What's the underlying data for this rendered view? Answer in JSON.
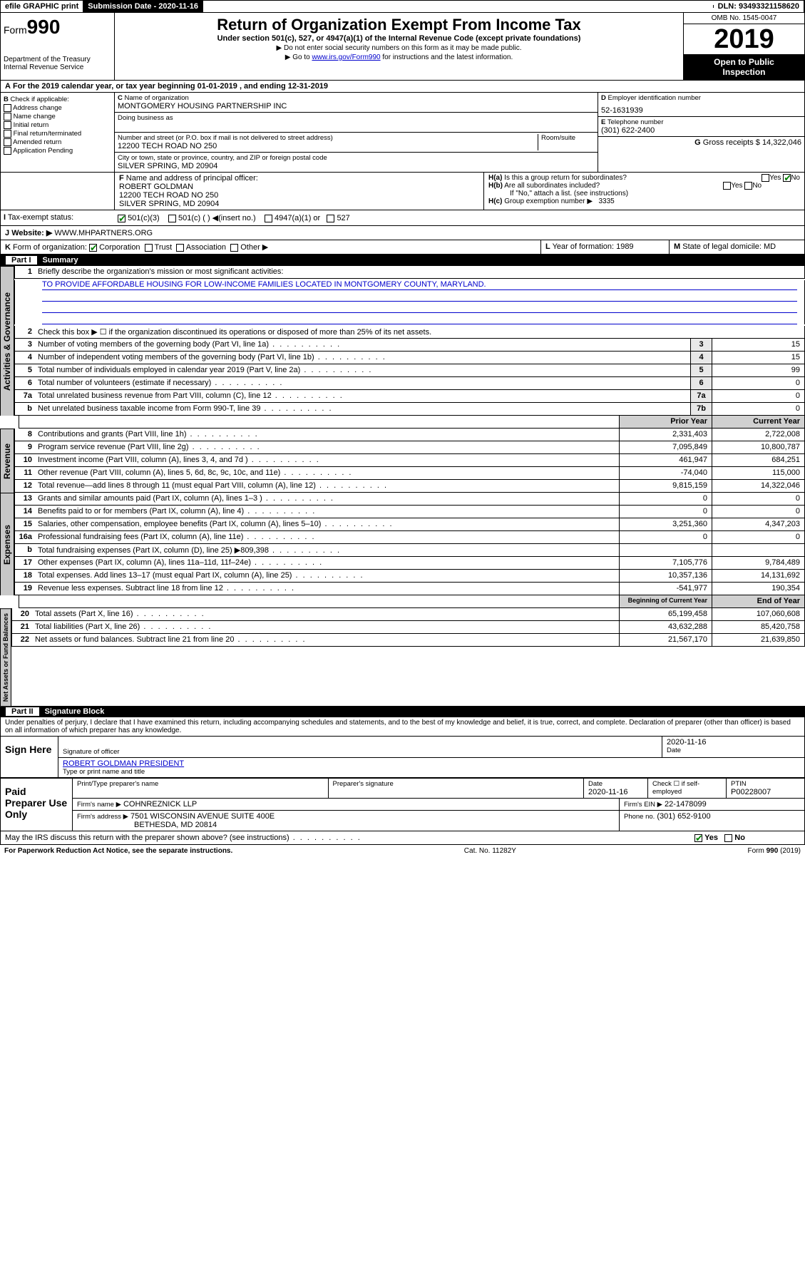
{
  "topbar": {
    "efile": "efile GRAPHIC print",
    "submission_label": "Submission Date - 2020-11-16",
    "dln": "DLN: 93493321158620"
  },
  "header": {
    "form_prefix": "Form",
    "form_number": "990",
    "dept": "Department of the Treasury\nInternal Revenue Service",
    "title": "Return of Organization Exempt From Income Tax",
    "subtitle": "Under section 501(c), 527, or 4947(a)(1) of the Internal Revenue Code (except private foundations)",
    "note1": "▶ Do not enter social security numbers on this form as it may be made public.",
    "note2_pre": "▶ Go to ",
    "note2_link": "www.irs.gov/Form990",
    "note2_post": " for instructions and the latest information.",
    "omb": "OMB No. 1545-0047",
    "year": "2019",
    "open": "Open to Public\nInspection"
  },
  "A": {
    "text": "For the 2019 calendar year, or tax year beginning 01-01-2019    , and ending 12-31-2019"
  },
  "B": {
    "label": "Check if applicable:",
    "opts": [
      "Address change",
      "Name change",
      "Initial return",
      "Final return/terminated",
      "Amended return",
      "Application Pending"
    ]
  },
  "C": {
    "name_label": "Name of organization",
    "name": "MONTGOMERY HOUSING PARTNERSHIP INC",
    "dba_label": "Doing business as",
    "street_label": "Number and street (or P.O. box if mail is not delivered to street address)",
    "room_label": "Room/suite",
    "street": "12200 TECH ROAD NO 250",
    "city_label": "City or town, state or province, country, and ZIP or foreign postal code",
    "city": "SILVER SPRING, MD  20904"
  },
  "D": {
    "label": "Employer identification number",
    "value": "52-1631939"
  },
  "E": {
    "label": "Telephone number",
    "value": "(301) 622-2400"
  },
  "G": {
    "label": "Gross receipts $",
    "value": "14,322,046"
  },
  "F": {
    "label": "Name and address of principal officer:",
    "name": "ROBERT GOLDMAN",
    "addr1": "12200 TECH ROAD NO 250",
    "addr2": "SILVER SPRING, MD  20904"
  },
  "H": {
    "a": "Is this a group return for subordinates?",
    "b": "Are all subordinates included?",
    "bnote": "If \"No,\" attach a list. (see instructions)",
    "c_label": "Group exemption number ▶",
    "c_val": "3335"
  },
  "I": {
    "label": "Tax-exempt status:",
    "opts": [
      "501(c)(3)",
      "501(c) (  ) ◀(insert no.)",
      "4947(a)(1) or",
      "527"
    ]
  },
  "J": {
    "label": "Website: ▶",
    "value": "WWW.MHPARTNERS.ORG"
  },
  "K": {
    "label": "Form of organization:",
    "opts": [
      "Corporation",
      "Trust",
      "Association",
      "Other ▶"
    ]
  },
  "L": {
    "label": "Year of formation:",
    "value": "1989"
  },
  "M": {
    "label": "State of legal domicile:",
    "value": "MD"
  },
  "part1": {
    "title": "Part I",
    "subtitle": "Summary",
    "q1": "Briefly describe the organization's mission or most significant activities:",
    "mission": "TO PROVIDE AFFORDABLE HOUSING FOR LOW-INCOME FAMILIES LOCATED IN MONTGOMERY COUNTY, MARYLAND.",
    "q2": "Check this box ▶ ☐ if the organization discontinued its operations or disposed of more than 25% of its net assets."
  },
  "governance": {
    "tab": "Activities & Governance",
    "rows": [
      {
        "n": "3",
        "d": "Number of voting members of the governing body (Part VI, line 1a)",
        "box": "3",
        "v": "15"
      },
      {
        "n": "4",
        "d": "Number of independent voting members of the governing body (Part VI, line 1b)",
        "box": "4",
        "v": "15"
      },
      {
        "n": "5",
        "d": "Total number of individuals employed in calendar year 2019 (Part V, line 2a)",
        "box": "5",
        "v": "99"
      },
      {
        "n": "6",
        "d": "Total number of volunteers (estimate if necessary)",
        "box": "6",
        "v": "0"
      },
      {
        "n": "7a",
        "d": "Total unrelated business revenue from Part VIII, column (C), line 12",
        "box": "7a",
        "v": "0"
      },
      {
        "n": "b",
        "d": "Net unrelated business taxable income from Form 990-T, line 39",
        "box": "7b",
        "v": "0"
      }
    ]
  },
  "colhdr": {
    "prior": "Prior Year",
    "current": "Current Year"
  },
  "revenue": {
    "tab": "Revenue",
    "rows": [
      {
        "n": "8",
        "d": "Contributions and grants (Part VIII, line 1h)",
        "p": "2,331,403",
        "c": "2,722,008"
      },
      {
        "n": "9",
        "d": "Program service revenue (Part VIII, line 2g)",
        "p": "7,095,849",
        "c": "10,800,787"
      },
      {
        "n": "10",
        "d": "Investment income (Part VIII, column (A), lines 3, 4, and 7d )",
        "p": "461,947",
        "c": "684,251"
      },
      {
        "n": "11",
        "d": "Other revenue (Part VIII, column (A), lines 5, 6d, 8c, 9c, 10c, and 11e)",
        "p": "-74,040",
        "c": "115,000"
      },
      {
        "n": "12",
        "d": "Total revenue—add lines 8 through 11 (must equal Part VIII, column (A), line 12)",
        "p": "9,815,159",
        "c": "14,322,046"
      }
    ]
  },
  "expenses": {
    "tab": "Expenses",
    "rows": [
      {
        "n": "13",
        "d": "Grants and similar amounts paid (Part IX, column (A), lines 1–3 )",
        "p": "0",
        "c": "0"
      },
      {
        "n": "14",
        "d": "Benefits paid to or for members (Part IX, column (A), line 4)",
        "p": "0",
        "c": "0"
      },
      {
        "n": "15",
        "d": "Salaries, other compensation, employee benefits (Part IX, column (A), lines 5–10)",
        "p": "3,251,360",
        "c": "4,347,203"
      },
      {
        "n": "16a",
        "d": "Professional fundraising fees (Part IX, column (A), line 11e)",
        "p": "0",
        "c": "0"
      },
      {
        "n": "b",
        "d": "Total fundraising expenses (Part IX, column (D), line 25) ▶809,398",
        "p": "",
        "c": ""
      },
      {
        "n": "17",
        "d": "Other expenses (Part IX, column (A), lines 11a–11d, 11f–24e)",
        "p": "7,105,776",
        "c": "9,784,489"
      },
      {
        "n": "18",
        "d": "Total expenses. Add lines 13–17 (must equal Part IX, column (A), line 25)",
        "p": "10,357,136",
        "c": "14,131,692"
      },
      {
        "n": "19",
        "d": "Revenue less expenses. Subtract line 18 from line 12",
        "p": "-541,977",
        "c": "190,354"
      }
    ]
  },
  "colhdr2": {
    "prior": "Beginning of Current Year",
    "current": "End of Year"
  },
  "netassets": {
    "tab": "Net Assets or Fund Balances",
    "rows": [
      {
        "n": "20",
        "d": "Total assets (Part X, line 16)",
        "p": "65,199,458",
        "c": "107,060,608"
      },
      {
        "n": "21",
        "d": "Total liabilities (Part X, line 26)",
        "p": "43,632,288",
        "c": "85,420,758"
      },
      {
        "n": "22",
        "d": "Net assets or fund balances. Subtract line 21 from line 20",
        "p": "21,567,170",
        "c": "21,639,850"
      }
    ]
  },
  "part2": {
    "title": "Part II",
    "subtitle": "Signature Block",
    "perjury": "Under penalties of perjury, I declare that I have examined this return, including accompanying schedules and statements, and to the best of my knowledge and belief, it is true, correct, and complete. Declaration of preparer (other than officer) is based on all information of which preparer has any knowledge."
  },
  "sign": {
    "label": "Sign Here",
    "sig_label": "Signature of officer",
    "date": "2020-11-16",
    "date_label": "Date",
    "name": "ROBERT GOLDMAN  PRESIDENT",
    "name_label": "Type or print name and title"
  },
  "paid": {
    "label": "Paid Preparer Use Only",
    "h1": "Print/Type preparer's name",
    "h2": "Preparer's signature",
    "h3": "Date",
    "date": "2020-11-16",
    "h4": "Check ☐ if self-employed",
    "h5": "PTIN",
    "ptin": "P00228007",
    "firm_label": "Firm's name    ▶",
    "firm": "COHNREZNICK LLP",
    "ein_label": "Firm's EIN ▶",
    "ein": "22-1478099",
    "addr_label": "Firm's address ▶",
    "addr": "7501 WISCONSIN AVENUE SUITE 400E",
    "addr2": "BETHESDA, MD  20814",
    "phone_label": "Phone no.",
    "phone": "(301) 652-9100"
  },
  "discuss": "May the IRS discuss this return with the preparer shown above? (see instructions)",
  "footer": {
    "left": "For Paperwork Reduction Act Notice, see the separate instructions.",
    "mid": "Cat. No. 11282Y",
    "right": "Form 990 (2019)"
  }
}
